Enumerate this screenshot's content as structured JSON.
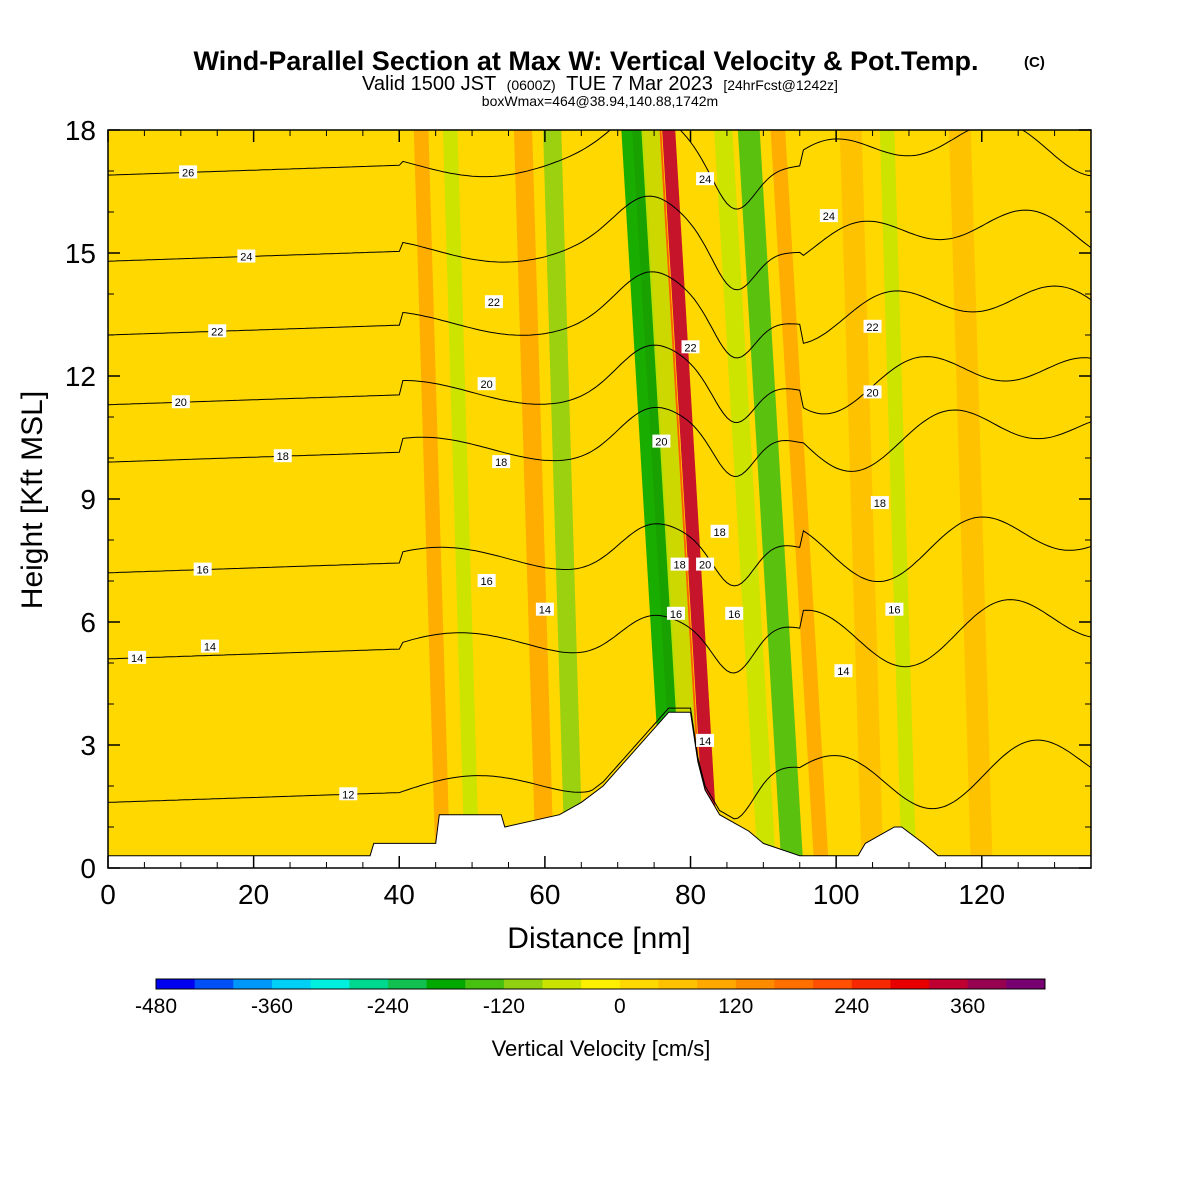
{
  "header": {
    "title": "Wind-Parallel Section at Max W: Vertical Velocity & Pot.Temp.",
    "title_mark": "(C)",
    "subtitle_prefix": "Valid 1500 JST",
    "subtitle_zulu": "(0600Z)",
    "subtitle_date": "TUE 7 Mar 2023",
    "subtitle_forecast": "[24hrFcst@1242z]",
    "line3": "boxWmax=464@38.94,140.88,1742m"
  },
  "chart_data": {
    "type": "heatmap",
    "xlabel": "Distance [nm]",
    "ylabel": "Height [Kft MSL]",
    "xlim": [
      0,
      135
    ],
    "ylim": [
      0,
      18
    ],
    "x_ticks": [
      0,
      20,
      40,
      60,
      80,
      100,
      120
    ],
    "y_ticks": [
      0,
      3,
      6,
      9,
      12,
      15,
      18
    ],
    "x_tick_labels": [
      "0",
      "20",
      "40",
      "60",
      "80",
      "100",
      "120"
    ],
    "y_tick_labels": [
      "0",
      "3",
      "6",
      "9",
      "12",
      "15",
      "18"
    ],
    "terrain_profile": {
      "x": [
        0,
        36,
        36.5,
        45,
        45.5,
        54,
        54.5,
        62,
        65,
        68,
        70,
        72,
        74,
        76,
        77,
        78,
        80,
        81,
        82,
        83,
        84,
        86,
        88,
        90,
        95,
        103,
        104,
        108,
        109,
        112,
        114,
        135
      ],
      "top": [
        0.3,
        0.3,
        0.6,
        0.6,
        1.3,
        1.3,
        1.0,
        1.3,
        1.6,
        2.0,
        2.4,
        2.8,
        3.2,
        3.6,
        3.8,
        3.8,
        3.8,
        2.6,
        1.9,
        1.6,
        1.3,
        1.1,
        0.9,
        0.6,
        0.3,
        0.3,
        0.6,
        1.0,
        1.0,
        0.6,
        0.3,
        0.3
      ]
    },
    "vertical_velocity_bands": [
      {
        "x": 80.0,
        "w": 4.0,
        "value": 230
      },
      {
        "x": 83.0,
        "w": 1.8,
        "value": 340
      },
      {
        "x": 78.0,
        "w": 3.0,
        "value": -180
      },
      {
        "x": 80.5,
        "w": 2.5,
        "value": -80
      },
      {
        "x": 94.0,
        "w": 3.0,
        "value": -160
      },
      {
        "x": 90.5,
        "w": 2.5,
        "value": -80
      },
      {
        "x": 64.0,
        "w": 2.5,
        "value": -100
      },
      {
        "x": 60.0,
        "w": 2.5,
        "value": 110
      },
      {
        "x": 46.0,
        "w": 2.0,
        "value": 100
      },
      {
        "x": 50.0,
        "w": 2.0,
        "value": -60
      },
      {
        "x": 105.0,
        "w": 3.0,
        "value": 70
      },
      {
        "x": 110.0,
        "w": 2.0,
        "value": -60
      },
      {
        "x": 98.0,
        "w": 2.0,
        "value": 110
      },
      {
        "x": 120.0,
        "w": 3.0,
        "value": 60
      }
    ],
    "theta_contours": [
      {
        "label": "12",
        "base": 1.6,
        "label_x": 33
      },
      {
        "label": "14",
        "base": 5.1,
        "label_x": 4
      },
      {
        "label": "16",
        "base": 7.2,
        "label_x": 13
      },
      {
        "label": "18",
        "base": 9.9,
        "label_x": 24
      },
      {
        "label": "20",
        "base": 11.3,
        "label_x": 10
      },
      {
        "label": "22",
        "base": 13.0,
        "label_x": 15
      },
      {
        "label": "24",
        "base": 14.8,
        "label_x": 19
      },
      {
        "label": "26",
        "base": 16.9,
        "label_x": 11
      }
    ],
    "extra_contour_labels": [
      {
        "label": "24",
        "x": 82,
        "y": 16.8
      },
      {
        "label": "24",
        "x": 99,
        "y": 15.9
      },
      {
        "label": "22",
        "x": 53,
        "y": 13.8
      },
      {
        "label": "22",
        "x": 80,
        "y": 12.7
      },
      {
        "label": "22",
        "x": 105,
        "y": 13.2
      },
      {
        "label": "20",
        "x": 52,
        "y": 11.8
      },
      {
        "label": "20",
        "x": 76,
        "y": 10.4
      },
      {
        "label": "20",
        "x": 105,
        "y": 11.6
      },
      {
        "label": "18",
        "x": 54,
        "y": 9.9
      },
      {
        "label": "18",
        "x": 78.5,
        "y": 7.4
      },
      {
        "label": "18",
        "x": 84,
        "y": 8.2
      },
      {
        "label": "18",
        "x": 106,
        "y": 8.9
      },
      {
        "label": "20",
        "x": 82,
        "y": 7.4
      },
      {
        "label": "16",
        "x": 52,
        "y": 7.0
      },
      {
        "label": "16",
        "x": 78,
        "y": 6.2
      },
      {
        "label": "16",
        "x": 86,
        "y": 6.2
      },
      {
        "label": "16",
        "x": 108,
        "y": 6.3
      },
      {
        "label": "14",
        "x": 14,
        "y": 5.4
      },
      {
        "label": "14",
        "x": 60,
        "y": 6.3
      },
      {
        "label": "14",
        "x": 101,
        "y": 4.8
      },
      {
        "label": "14",
        "x": 82,
        "y": 3.1
      }
    ]
  },
  "colorbar": {
    "label": "Vertical Velocity [cm/s]",
    "tick_values": [
      -480,
      -360,
      -240,
      -120,
      0,
      120,
      240,
      360
    ],
    "tick_labels": [
      "-480",
      "-360",
      "-240",
      "-120",
      "0",
      "120",
      "240",
      "360"
    ],
    "min": -480,
    "step": 40,
    "colors": [
      "#0000f0",
      "#0050f8",
      "#0098f8",
      "#00d0f8",
      "#00f0e0",
      "#00d890",
      "#10c050",
      "#00a800",
      "#48c010",
      "#90d010",
      "#c8e400",
      "#fff000",
      "#ffd800",
      "#ffc000",
      "#ffa800",
      "#ff8c00",
      "#ff7000",
      "#ff5000",
      "#f82800",
      "#e80000",
      "#c00030",
      "#980050",
      "#780070"
    ]
  }
}
